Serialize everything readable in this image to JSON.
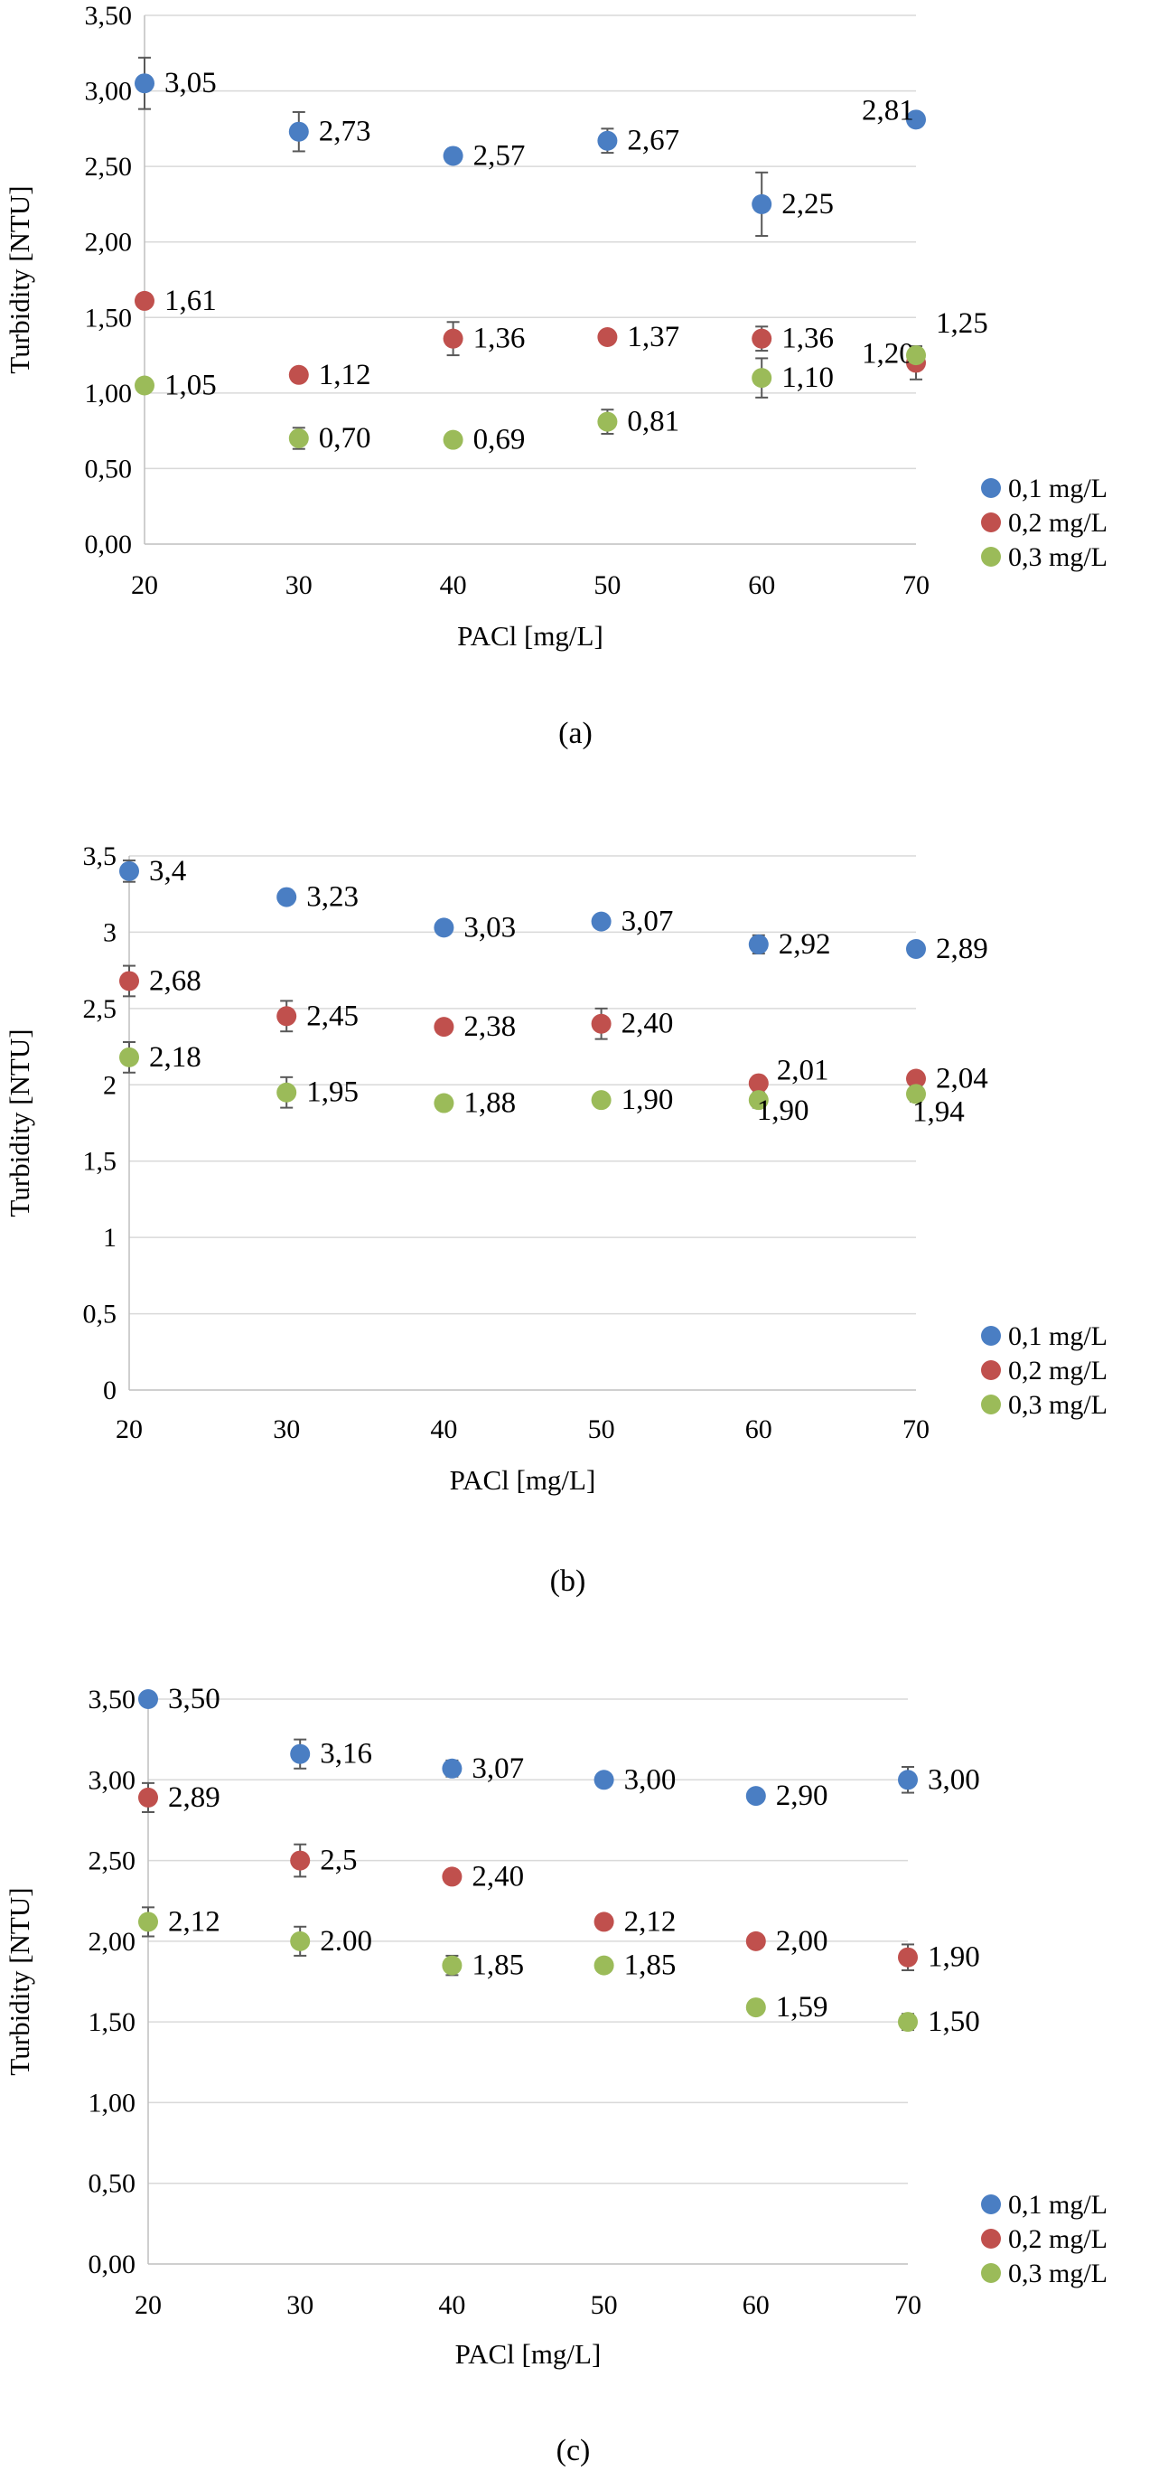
{
  "colors": {
    "0,1 mg/L": "#4a7ec3",
    "0,2 mg/L": "#c0504d",
    "0,3 mg/L": "#9bbb59",
    "grid": "#d9d9d9",
    "axis": "#bfbfbf",
    "error_bar": "#595959"
  },
  "chart_data": [
    {
      "type": "scatter",
      "caption": "(a)",
      "xlabel": "PACl [mg/L]",
      "ylabel": "Turbidity [NTU]",
      "xlim": [
        20,
        70
      ],
      "ylim": [
        0,
        3.5
      ],
      "x_ticks": [
        "20",
        "30",
        "40",
        "50",
        "60",
        "70"
      ],
      "y_ticks": [
        "0,00",
        "0,50",
        "1,00",
        "1,50",
        "2,00",
        "2,50",
        "3,00",
        "3,50"
      ],
      "grid": "horizontal",
      "legend_position": "right",
      "x": [
        20,
        30,
        40,
        50,
        60,
        70
      ],
      "series": [
        {
          "name": "0,1 mg/L",
          "values": [
            3.05,
            2.73,
            2.57,
            2.67,
            2.25,
            2.81
          ],
          "labels": [
            "3,05",
            "2,73",
            "2,57",
            "2,67",
            "2,25",
            "2,81"
          ],
          "errors": [
            0.17,
            0.13,
            0.03,
            0.08,
            0.21,
            0
          ]
        },
        {
          "name": "0,2 mg/L",
          "values": [
            1.61,
            1.12,
            1.36,
            1.37,
            1.36,
            1.2
          ],
          "labels": [
            "1,61",
            "1,12",
            "1,36",
            "1,37",
            "1,36",
            "1,20"
          ],
          "errors": [
            0,
            0,
            0.11,
            0.03,
            0.08,
            0.11
          ]
        },
        {
          "name": "0,3 mg/L",
          "values": [
            1.05,
            0.7,
            0.69,
            0.81,
            1.1,
            1.25
          ],
          "labels": [
            "1,05",
            "0,70",
            "0,69",
            "0,81",
            "1,10",
            "1,25"
          ],
          "errors": [
            0,
            0.07,
            0,
            0.08,
            0.13,
            0
          ]
        }
      ]
    },
    {
      "type": "scatter",
      "caption": "(b)",
      "xlabel": "PACl [mg/L]",
      "ylabel": "Turbidity [NTU]",
      "xlim": [
        20,
        70
      ],
      "ylim": [
        0,
        3.5
      ],
      "x_ticks": [
        "20",
        "30",
        "40",
        "50",
        "60",
        "70"
      ],
      "y_ticks": [
        "0",
        "0,5",
        "1",
        "1,5",
        "2",
        "2,5",
        "3",
        "3,5"
      ],
      "grid": "horizontal",
      "legend_position": "right",
      "x": [
        20,
        30,
        40,
        50,
        60,
        70
      ],
      "series": [
        {
          "name": "0,1 mg/L",
          "values": [
            3.4,
            3.23,
            3.03,
            3.07,
            2.92,
            2.89
          ],
          "labels": [
            "3,4",
            "3,23",
            "3,03",
            "3,07",
            "2,92",
            "2,89"
          ],
          "errors": [
            0.07,
            0.03,
            0,
            0,
            0.06,
            0
          ]
        },
        {
          "name": "0,2 mg/L",
          "values": [
            2.68,
            2.45,
            2.38,
            2.4,
            2.01,
            2.04
          ],
          "labels": [
            "2,68",
            "2,45",
            "2,38",
            "2,40",
            "2,01",
            "2,04"
          ],
          "errors": [
            0.1,
            0.1,
            0,
            0.1,
            0,
            0
          ]
        },
        {
          "name": "0,3 mg/L",
          "values": [
            2.18,
            1.95,
            1.88,
            1.9,
            1.9,
            1.94
          ],
          "labels": [
            "2,18",
            "1,95",
            "1,88",
            "1,90",
            "1,90",
            "1,94"
          ],
          "errors": [
            0.1,
            0.1,
            0,
            0,
            0.05,
            0.05
          ]
        }
      ]
    },
    {
      "type": "scatter",
      "caption": "(c)",
      "xlabel": "PACl [mg/L]",
      "ylabel": "Turbidity [NTU]",
      "xlim": [
        20,
        70
      ],
      "ylim": [
        0,
        3.5
      ],
      "x_ticks": [
        "20",
        "30",
        "40",
        "50",
        "60",
        "70"
      ],
      "y_ticks": [
        "0,00",
        "0,50",
        "1,00",
        "1,50",
        "2,00",
        "2,50",
        "3,00",
        "3,50"
      ],
      "grid": "horizontal",
      "legend_position": "right",
      "x": [
        20,
        30,
        40,
        50,
        60,
        70
      ],
      "series": [
        {
          "name": "0,1 mg/L",
          "values": [
            3.5,
            3.16,
            3.07,
            3.0,
            2.9,
            3.0
          ],
          "labels": [
            "3,50",
            "3,16",
            "3,07",
            "3,00",
            "2,90",
            "3,00"
          ],
          "errors": [
            0,
            0.09,
            0.05,
            0,
            0,
            0.08
          ]
        },
        {
          "name": "0,2 mg/L",
          "values": [
            2.89,
            2.5,
            2.4,
            2.12,
            2.0,
            1.9
          ],
          "labels": [
            "2,89",
            "2,5",
            "2,40",
            "2,12",
            "2,00",
            "1,90"
          ],
          "errors": [
            0.09,
            0.1,
            0,
            0,
            0,
            0.08
          ]
        },
        {
          "name": "0,3 mg/L",
          "values": [
            2.12,
            2.0,
            1.85,
            1.85,
            1.59,
            1.5
          ],
          "labels": [
            "2,12",
            "2.00",
            "1,85",
            "1,85",
            "1,59",
            "1,50"
          ],
          "errors": [
            0.09,
            0.09,
            0.06,
            0,
            0,
            0.05
          ]
        }
      ]
    }
  ]
}
